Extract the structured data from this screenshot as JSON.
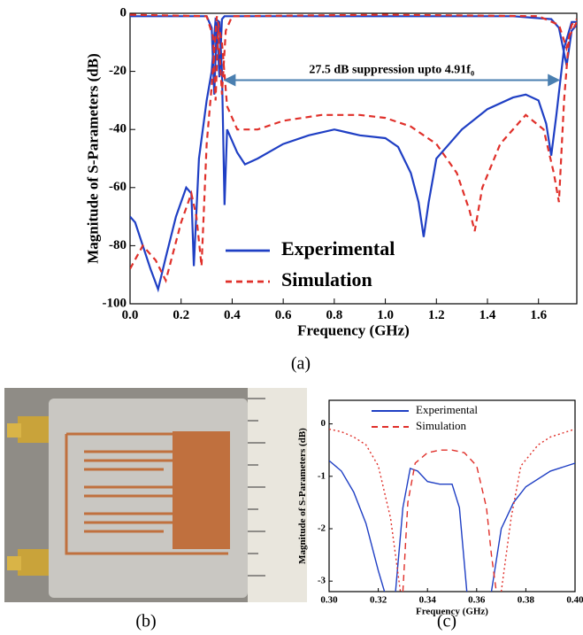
{
  "chart_data": [
    {
      "type": "line",
      "xlabel": "Frequency (GHz)",
      "ylabel": "Magnitude of S-Parameters (dB)",
      "xlim": [
        0,
        1.75
      ],
      "ylim": [
        -100,
        0
      ],
      "xticks": [
        {
          "value": 0,
          "label": "0.0"
        },
        0.2,
        0.4,
        0.6,
        0.8,
        {
          "value": 1,
          "label": "1.0"
        },
        1.2,
        1.4,
        1.6
      ],
      "yticks": [
        0,
        -20,
        -40,
        -60,
        -80,
        -100
      ],
      "grid": false,
      "legend": "lower center",
      "annotation": {
        "text": "27.5 dB suppression upto 4.91f₀",
        "x": [
          0.37,
          1.68
        ],
        "y": -23,
        "color": "#4a7fb0"
      },
      "series": [
        {
          "name": "Experimental",
          "color": "#1f3fc4",
          "dash": "solid",
          "x": [
            0,
            0.02,
            0.05,
            0.08,
            0.11,
            0.14,
            0.18,
            0.22,
            0.24,
            0.25,
            0.27,
            0.3,
            0.32,
            0.335,
            0.35,
            0.36,
            0.37,
            0.38,
            0.42,
            0.45,
            0.5,
            0.6,
            0.7,
            0.8,
            0.85,
            0.9,
            1.0,
            1.05,
            1.1,
            1.13,
            1.15,
            1.17,
            1.2,
            1.3,
            1.4,
            1.5,
            1.55,
            1.6,
            1.63,
            1.65,
            1.67,
            1.7,
            1.73,
            1.75
          ],
          "values": [
            -70,
            -72,
            -80,
            -88,
            -95,
            -84,
            -70,
            -60,
            -62,
            -87,
            -50,
            -30,
            -20,
            -2,
            -3,
            -20,
            -66,
            -40,
            -48,
            -52,
            -50,
            -45,
            -42,
            -40,
            -41,
            -42,
            -43,
            -46,
            -55,
            -65,
            -77,
            -65,
            -50,
            -40,
            -33,
            -29,
            -28,
            -30,
            -38,
            -49,
            -35,
            -12,
            -3,
            -3
          ]
        },
        {
          "color": "#1f3fc4",
          "dash": "solid",
          "x": [
            0,
            0.3,
            0.32,
            0.33,
            0.34,
            0.35,
            0.36,
            0.37,
            0.5,
            1.0,
            1.5,
            1.65,
            1.68,
            1.71,
            1.73,
            1.75
          ],
          "values": [
            -1,
            -1,
            -5,
            -28,
            -3,
            -22,
            -2,
            -1,
            -1,
            -1,
            -1,
            -2,
            -5,
            -18,
            -6,
            -4
          ]
        },
        {
          "name": "Simulation",
          "color": "#e0302a",
          "dash": "dashed",
          "x": [
            0,
            0.05,
            0.1,
            0.14,
            0.2,
            0.24,
            0.26,
            0.28,
            0.3,
            0.32,
            0.34,
            0.36,
            0.38,
            0.42,
            0.5,
            0.6,
            0.75,
            0.9,
            1.0,
            1.1,
            1.2,
            1.28,
            1.33,
            1.35,
            1.38,
            1.45,
            1.55,
            1.62,
            1.66,
            1.68,
            1.7,
            1.72,
            1.75
          ],
          "values": [
            -88,
            -80,
            -85,
            -92,
            -72,
            -62,
            -70,
            -87,
            -45,
            -25,
            -1,
            -10,
            -32,
            -40,
            -40,
            -37,
            -35,
            -35,
            -36,
            -39,
            -45,
            -55,
            -68,
            -75,
            -60,
            -45,
            -35,
            -40,
            -55,
            -65,
            -30,
            -8,
            -3
          ]
        },
        {
          "color": "#e0302a",
          "dash": "dashed",
          "x": [
            0,
            0.3,
            0.325,
            0.335,
            0.345,
            0.36,
            0.375,
            0.4,
            1.0,
            1.6,
            1.68,
            1.71,
            1.73,
            1.75
          ],
          "values": [
            -0.5,
            -1,
            -8,
            -30,
            -5,
            -28,
            -6,
            -1,
            -0.5,
            -1,
            -4,
            -12,
            -4,
            -2
          ]
        }
      ]
    },
    {
      "type": "line",
      "xlabel": "Frequency (GHz)",
      "ylabel": "Magnitude of S-Parameters (dB)",
      "xlim": [
        0.3,
        0.4
      ],
      "ylim": [
        -3.2,
        0.45
      ],
      "xticks": [
        {
          "value": 0.3,
          "label": "0.30"
        },
        {
          "value": 0.32,
          "label": "0.32"
        },
        {
          "value": 0.34,
          "label": "0.34"
        },
        {
          "value": 0.36,
          "label": "0.36"
        },
        {
          "value": 0.38,
          "label": "0.38"
        },
        {
          "value": 0.4,
          "label": "0.40"
        }
      ],
      "yticks": [
        0,
        -1,
        -2,
        -3
      ],
      "grid": false,
      "legend": "upper center",
      "series": [
        {
          "name": "Experimental",
          "color": "#1f3fc4",
          "dash": "solid",
          "x": [
            0.3,
            0.305,
            0.31,
            0.315,
            0.32,
            0.3225,
            0.324,
            0.327,
            0.33,
            0.333,
            0.336,
            0.34,
            0.345,
            0.35,
            0.353,
            0.356,
            0.36,
            0.366,
            0.37,
            0.375,
            0.38,
            0.39,
            0.4
          ],
          "values": [
            -0.7,
            -0.9,
            -1.3,
            -1.9,
            -2.8,
            -3.2,
            null,
            -3.2,
            -1.6,
            -0.85,
            -0.9,
            -1.1,
            -1.15,
            -1.15,
            -1.6,
            -3.2,
            null,
            -3.2,
            -2.0,
            -1.5,
            -1.2,
            -0.9,
            -0.75
          ]
        },
        {
          "name": "Simulation",
          "color": "#e0302a",
          "dash": "dashed",
          "x": [
            0.33,
            0.332,
            0.335,
            0.34,
            0.345,
            0.35,
            0.355,
            0.36,
            0.364,
            0.366,
            0.368
          ],
          "values": [
            -3.2,
            -1.5,
            -0.75,
            -0.55,
            -0.5,
            -0.5,
            -0.55,
            -0.8,
            -1.6,
            -2.5,
            -3.2
          ]
        },
        {
          "color": "#e0302a",
          "dash": "dotted",
          "x": [
            0.3,
            0.305,
            0.31,
            0.315,
            0.32,
            0.325,
            0.329,
            0.35,
            0.37,
            0.374,
            0.378,
            0.385,
            0.39,
            0.4
          ],
          "values": [
            -0.1,
            -0.15,
            -0.25,
            -0.4,
            -0.8,
            -1.8,
            -3.2,
            null,
            -3.2,
            -1.8,
            -0.8,
            -0.4,
            -0.25,
            -0.1
          ]
        }
      ]
    }
  ],
  "captions": [
    "(a)",
    "(b)",
    "(c)"
  ]
}
